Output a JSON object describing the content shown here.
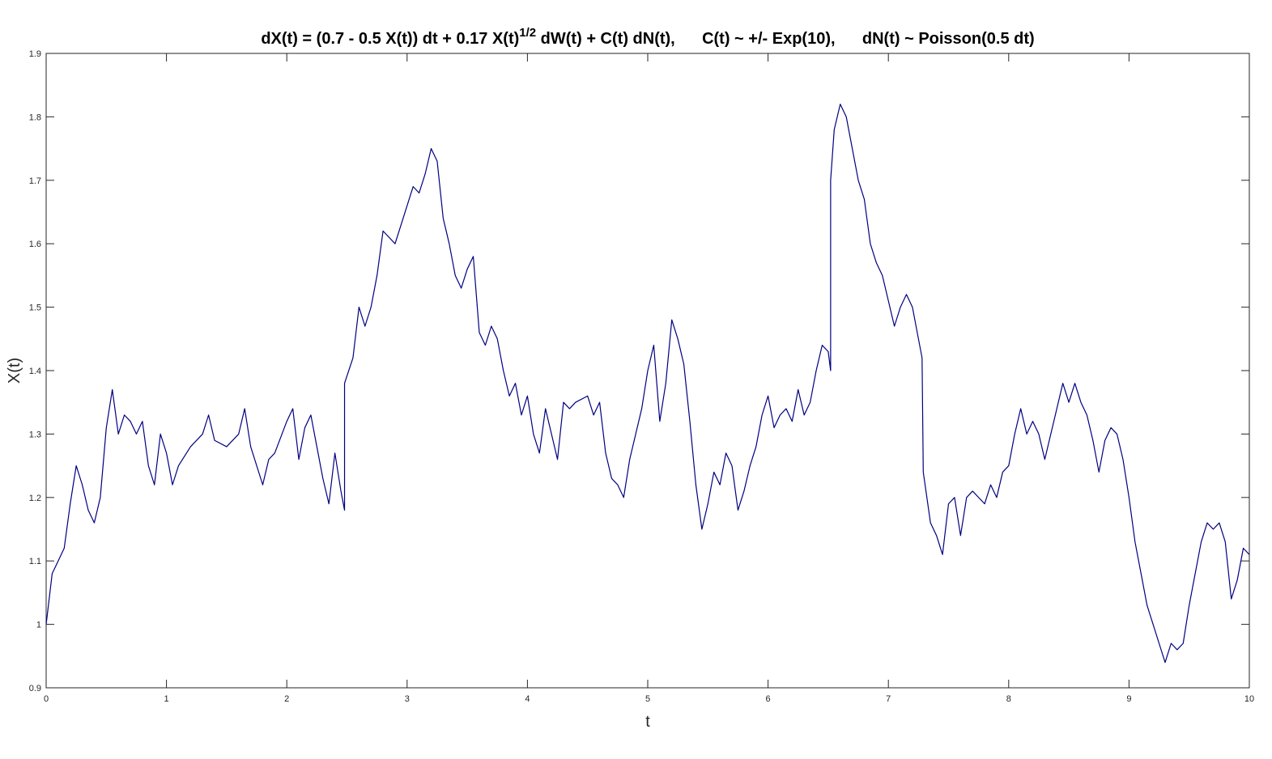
{
  "chart_data": {
    "type": "line",
    "title": {
      "before": "dX(t) = (0.7 - 0.5 X(t)) dt + 0.17 X(t)",
      "superscript": "1/2",
      "after": " dW(t) + C(t) dN(t),      C(t) ~ +/- Exp(10),      dN(t) ~ Poisson(0.5 dt)"
    },
    "xlabel": "t",
    "ylabel": "X(t)",
    "xlim": [
      0,
      10
    ],
    "ylim": [
      0.9,
      1.9
    ],
    "xticks": [
      0,
      1,
      2,
      3,
      4,
      5,
      6,
      7,
      8,
      9,
      10
    ],
    "yticks": [
      0.9,
      1,
      1.1,
      1.2,
      1.3,
      1.4,
      1.5,
      1.6,
      1.7,
      1.8,
      1.9
    ],
    "grid": false,
    "x": [
      0,
      0.05,
      0.1,
      0.15,
      0.2,
      0.25,
      0.3,
      0.35,
      0.4,
      0.45,
      0.5,
      0.55,
      0.6,
      0.65,
      0.7,
      0.75,
      0.8,
      0.85,
      0.9,
      0.95,
      1.0,
      1.05,
      1.1,
      1.2,
      1.3,
      1.35,
      1.4,
      1.5,
      1.6,
      1.65,
      1.7,
      1.8,
      1.85,
      1.9,
      2.0,
      2.05,
      2.1,
      2.15,
      2.2,
      2.25,
      2.3,
      2.35,
      2.4,
      2.45,
      2.48,
      2.48,
      2.55,
      2.6,
      2.65,
      2.7,
      2.75,
      2.8,
      2.9,
      3.0,
      3.05,
      3.1,
      3.15,
      3.2,
      3.25,
      3.3,
      3.35,
      3.4,
      3.45,
      3.5,
      3.55,
      3.6,
      3.65,
      3.7,
      3.75,
      3.8,
      3.85,
      3.9,
      3.95,
      4.0,
      4.05,
      4.1,
      4.15,
      4.2,
      4.25,
      4.3,
      4.35,
      4.4,
      4.5,
      4.55,
      4.6,
      4.65,
      4.7,
      4.75,
      4.8,
      4.85,
      4.9,
      4.95,
      5.0,
      5.05,
      5.1,
      5.15,
      5.2,
      5.25,
      5.3,
      5.35,
      5.4,
      5.45,
      5.5,
      5.55,
      5.6,
      5.65,
      5.7,
      5.75,
      5.8,
      5.85,
      5.9,
      5.95,
      6.0,
      6.05,
      6.1,
      6.15,
      6.2,
      6.25,
      6.3,
      6.35,
      6.4,
      6.45,
      6.5,
      6.52,
      6.52,
      6.55,
      6.6,
      6.65,
      6.7,
      6.75,
      6.8,
      6.85,
      6.9,
      6.95,
      7.0,
      7.05,
      7.1,
      7.15,
      7.2,
      7.25,
      7.28,
      7.29,
      7.35,
      7.4,
      7.45,
      7.5,
      7.55,
      7.6,
      7.65,
      7.7,
      7.8,
      7.85,
      7.9,
      7.95,
      8.0,
      8.05,
      8.1,
      8.15,
      8.2,
      8.25,
      8.3,
      8.35,
      8.4,
      8.45,
      8.5,
      8.55,
      8.6,
      8.65,
      8.7,
      8.75,
      8.8,
      8.85,
      8.9,
      8.95,
      9.0,
      9.05,
      9.1,
      9.15,
      9.2,
      9.25,
      9.3,
      9.35,
      9.4,
      9.45,
      9.5,
      9.55,
      9.6,
      9.65,
      9.7,
      9.75,
      9.8,
      9.85,
      9.9,
      9.95,
      10.0
    ],
    "series": [
      {
        "color": "#000080",
        "values": [
          1.0,
          1.08,
          1.1,
          1.12,
          1.19,
          1.25,
          1.22,
          1.18,
          1.16,
          1.2,
          1.31,
          1.37,
          1.3,
          1.33,
          1.32,
          1.3,
          1.32,
          1.25,
          1.22,
          1.3,
          1.27,
          1.22,
          1.25,
          1.28,
          1.3,
          1.33,
          1.29,
          1.28,
          1.3,
          1.34,
          1.28,
          1.22,
          1.26,
          1.27,
          1.32,
          1.34,
          1.26,
          1.31,
          1.33,
          1.28,
          1.23,
          1.19,
          1.27,
          1.21,
          1.18,
          1.38,
          1.42,
          1.5,
          1.47,
          1.5,
          1.55,
          1.62,
          1.6,
          1.66,
          1.69,
          1.68,
          1.71,
          1.75,
          1.73,
          1.64,
          1.6,
          1.55,
          1.53,
          1.56,
          1.58,
          1.46,
          1.44,
          1.47,
          1.45,
          1.4,
          1.36,
          1.38,
          1.33,
          1.36,
          1.3,
          1.27,
          1.34,
          1.3,
          1.26,
          1.35,
          1.34,
          1.35,
          1.36,
          1.33,
          1.35,
          1.27,
          1.23,
          1.22,
          1.2,
          1.26,
          1.3,
          1.34,
          1.4,
          1.44,
          1.32,
          1.38,
          1.48,
          1.45,
          1.41,
          1.32,
          1.22,
          1.15,
          1.19,
          1.24,
          1.22,
          1.27,
          1.25,
          1.18,
          1.21,
          1.25,
          1.28,
          1.33,
          1.36,
          1.31,
          1.33,
          1.34,
          1.32,
          1.37,
          1.33,
          1.35,
          1.4,
          1.44,
          1.43,
          1.4,
          1.7,
          1.78,
          1.82,
          1.8,
          1.75,
          1.7,
          1.67,
          1.6,
          1.57,
          1.55,
          1.51,
          1.47,
          1.5,
          1.52,
          1.5,
          1.45,
          1.42,
          1.24,
          1.16,
          1.14,
          1.11,
          1.19,
          1.2,
          1.14,
          1.2,
          1.21,
          1.19,
          1.22,
          1.2,
          1.24,
          1.25,
          1.3,
          1.34,
          1.3,
          1.32,
          1.3,
          1.26,
          1.3,
          1.34,
          1.38,
          1.35,
          1.38,
          1.35,
          1.33,
          1.29,
          1.24,
          1.29,
          1.31,
          1.3,
          1.26,
          1.2,
          1.13,
          1.08,
          1.03,
          1.0,
          0.97,
          0.94,
          0.97,
          0.96,
          0.97,
          1.03,
          1.08,
          1.13,
          1.16,
          1.15,
          1.16,
          1.13,
          1.04,
          1.07,
          1.12,
          1.11
        ]
      }
    ]
  }
}
